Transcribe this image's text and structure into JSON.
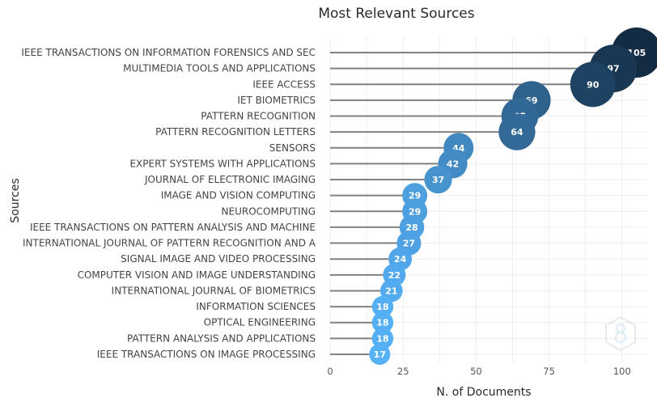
{
  "chart_data": {
    "type": "lollipop",
    "title": "Most Relevant Sources",
    "xlabel": "N. of Documents",
    "ylabel": "Sources",
    "xlim": [
      0,
      105
    ],
    "xticks": [
      0,
      25,
      50,
      75,
      100
    ],
    "grid": true,
    "categories": [
      "IEEE TRANSACTIONS ON INFORMATION FORENSICS AND SEC",
      "MULTIMEDIA TOOLS AND APPLICATIONS",
      "IEEE ACCESS",
      "IET BIOMETRICS",
      "PATTERN RECOGNITION",
      "PATTERN RECOGNITION LETTERS",
      "SENSORS",
      "EXPERT SYSTEMS WITH APPLICATIONS",
      "JOURNAL OF ELECTRONIC IMAGING",
      "IMAGE AND VISION COMPUTING",
      "NEUROCOMPUTING",
      "IEEE TRANSACTIONS ON PATTERN ANALYSIS AND MACHINE",
      "INTERNATIONAL JOURNAL OF PATTERN RECOGNITION AND A",
      "SIGNAL IMAGE AND VIDEO PROCESSING",
      "COMPUTER VISION AND IMAGE UNDERSTANDING",
      "INTERNATIONAL JOURNAL OF BIOMETRICS",
      "INFORMATION SCIENCES",
      "OPTICAL ENGINEERING",
      "PATTERN ANALYSIS AND APPLICATIONS",
      "IEEE TRANSACTIONS ON IMAGE PROCESSING"
    ],
    "values": [
      105,
      97,
      90,
      69,
      65,
      64,
      44,
      42,
      37,
      29,
      29,
      28,
      27,
      24,
      22,
      21,
      18,
      18,
      18,
      17
    ],
    "color_low": "#56B1F7",
    "color_high": "#132B43",
    "stem_color": "#808080"
  }
}
